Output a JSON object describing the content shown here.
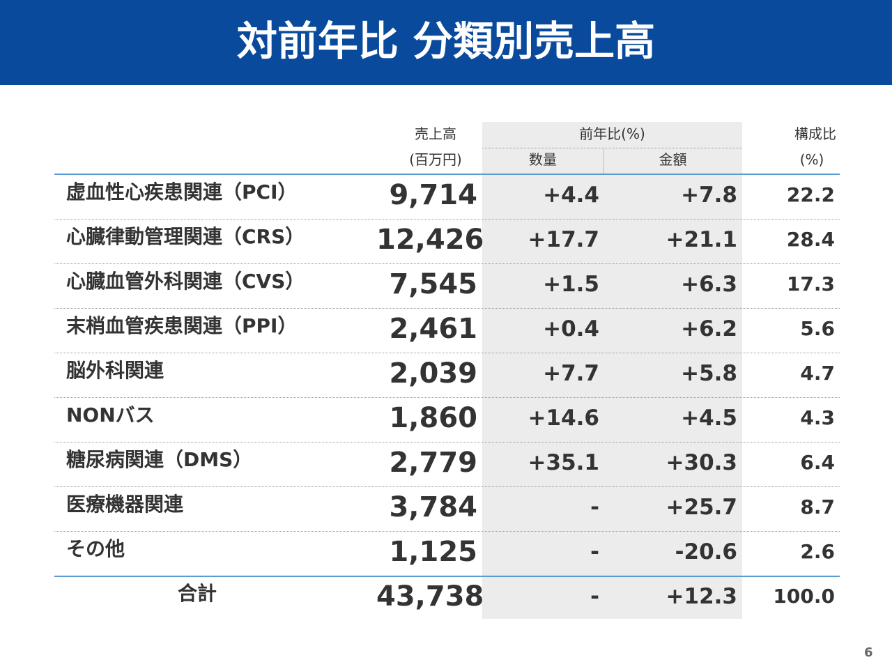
{
  "header": {
    "title": "対前年比 分類別売上高"
  },
  "table": {
    "columns": {
      "sales": [
        "売上高",
        "(百万円)"
      ],
      "yoy": "前年比(%)",
      "yoy_sub": [
        "数量",
        "金額"
      ],
      "share": [
        "構成比",
        "(%)"
      ]
    },
    "rows": [
      [
        "虚血性心疾患関連（PCI）",
        "9,714",
        "+4.4",
        "+7.8",
        "22.2"
      ],
      [
        "心臓律動管理関連（CRS）",
        "12,426",
        "+17.7",
        "+21.1",
        "28.4"
      ],
      [
        "心臓血管外科関連（CVS）",
        "7,545",
        "+1.5",
        "+6.3",
        "17.3"
      ],
      [
        "末梢血管疾患関連（PPI）",
        "2,461",
        "+0.4",
        "+6.2",
        "5.6"
      ],
      [
        "脳外科関連",
        "2,039",
        "+7.7",
        "+5.8",
        "4.7"
      ],
      [
        "NONバス",
        "1,860",
        "+14.6",
        "+4.5",
        "4.3"
      ],
      [
        "糖尿病関連（DMS）",
        "2,779",
        "+35.1",
        "+30.3",
        "6.4"
      ],
      [
        "医療機器関連",
        "3,784",
        "-",
        "+25.7",
        "8.7"
      ],
      [
        "その他",
        "1,125",
        "-",
        "-20.6",
        "2.6"
      ]
    ],
    "total": [
      "合計",
      "43,738",
      "-",
      "+12.3",
      "100.0"
    ]
  },
  "footer": {
    "page": "6"
  }
}
